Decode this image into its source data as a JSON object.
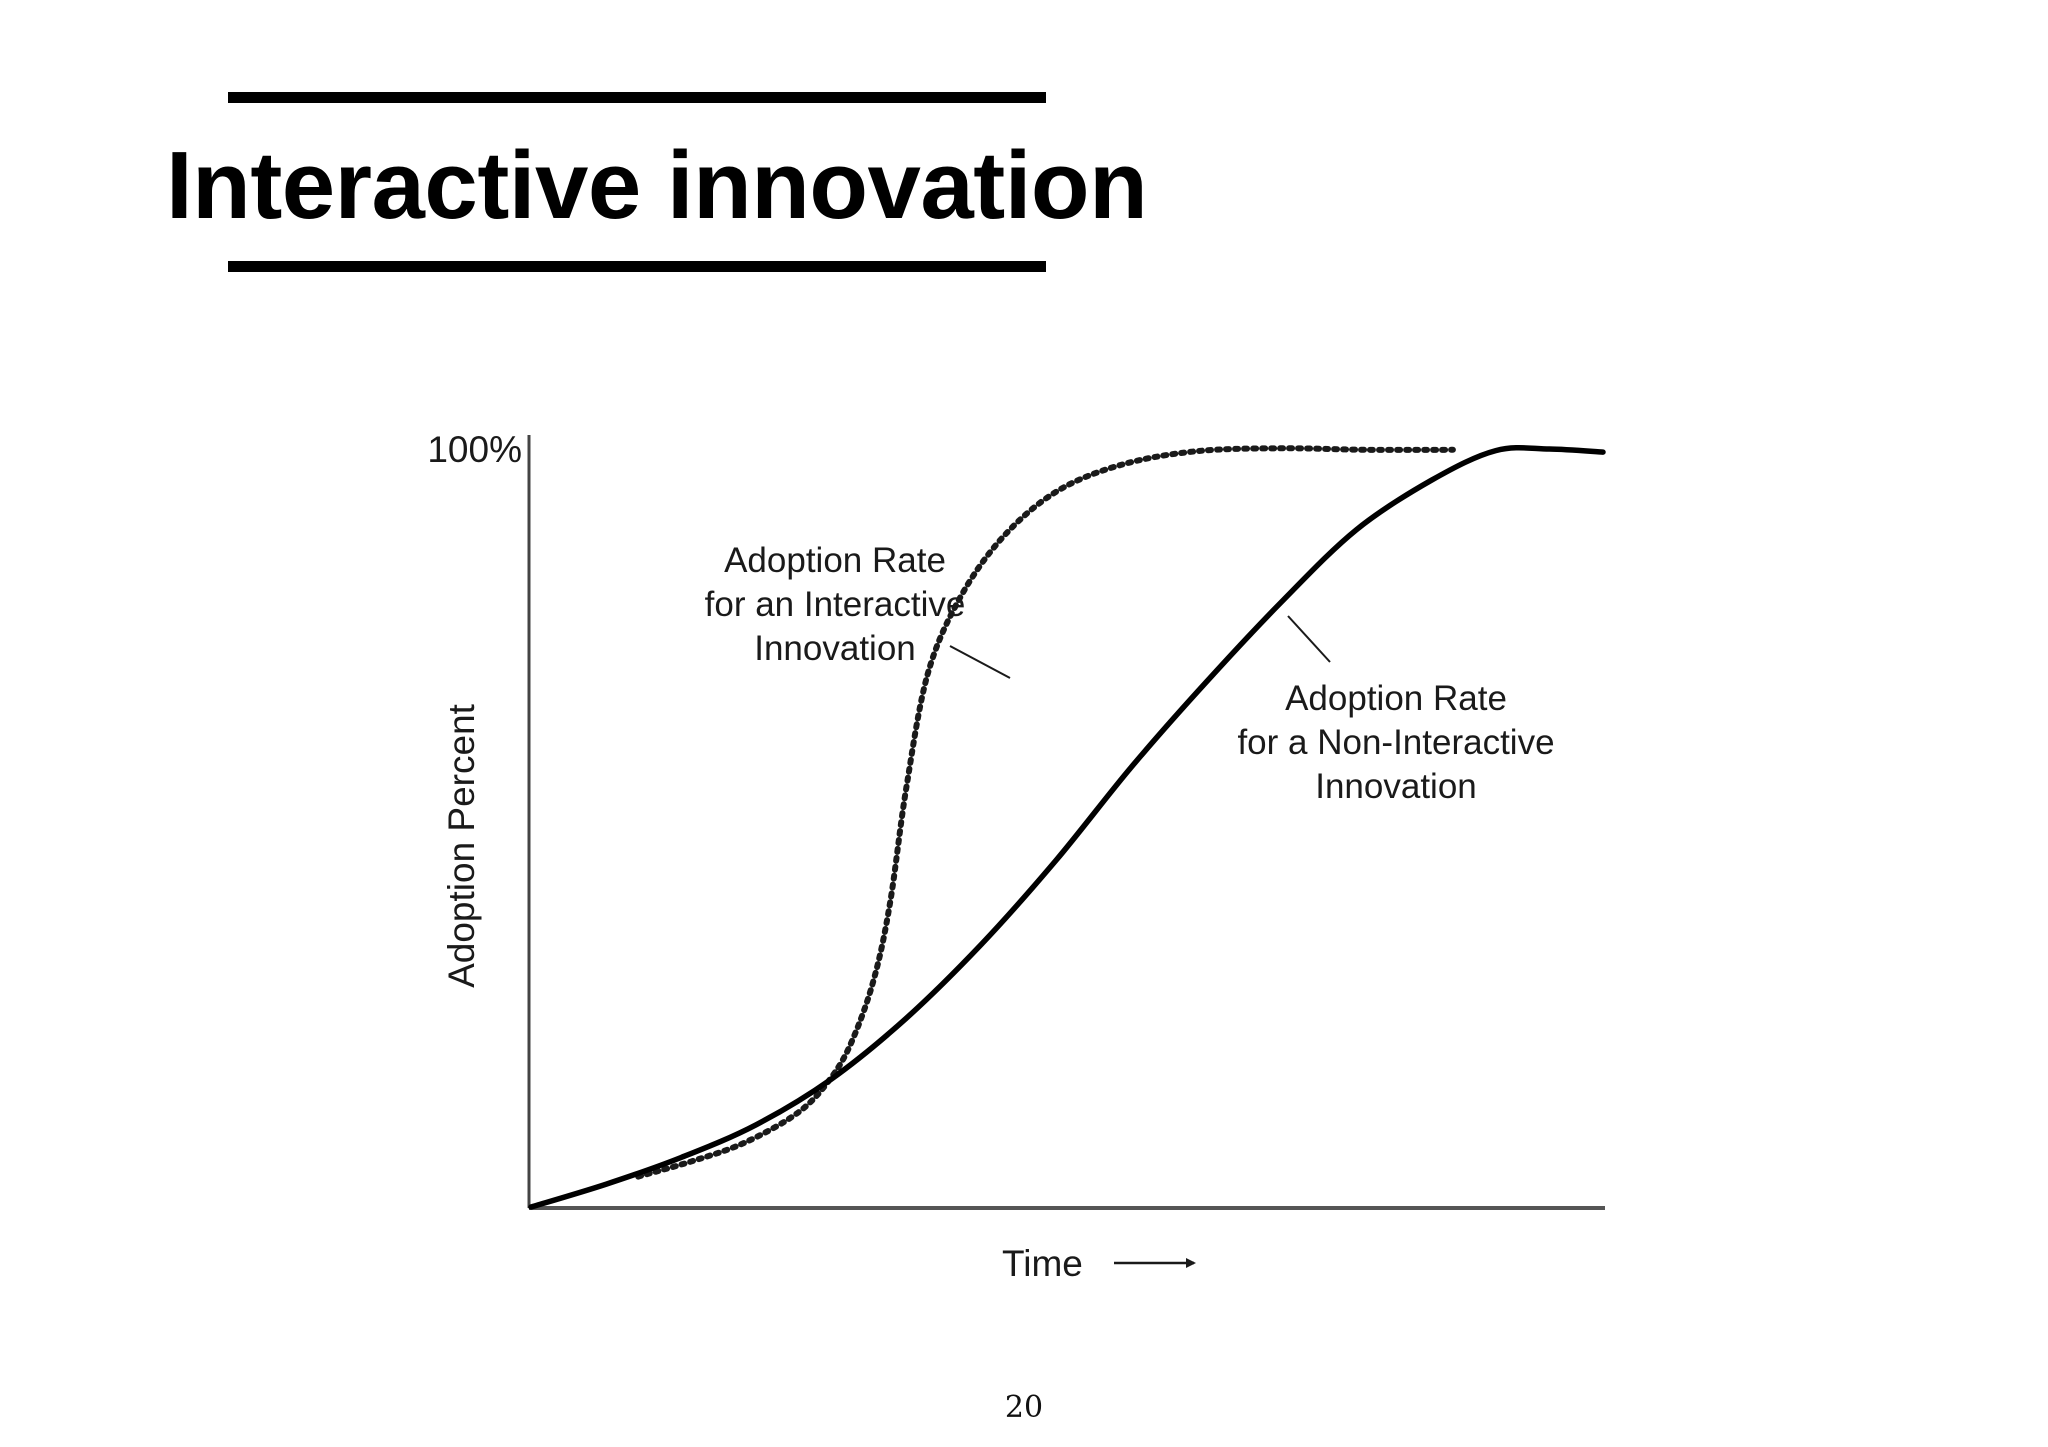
{
  "slide": {
    "title": "Interactive innovation",
    "page_number": "20"
  },
  "chart_data": {
    "type": "line",
    "title": "",
    "xlabel": "Time",
    "ylabel": "Adoption Percent",
    "y_top_tick_label": "100%",
    "xlim": [
      0,
      100
    ],
    "ylim": [
      0,
      100
    ],
    "grid": false,
    "legend": "none",
    "series": [
      {
        "name": "Adoption Rate for an Interactive Innovation",
        "label_lines": [
          "Adoption Rate",
          "for an Interactive",
          "Innovation"
        ],
        "style": "dotted",
        "color": "#1a1a1a",
        "points": [
          [
            10,
            4
          ],
          [
            15,
            6
          ],
          [
            20,
            8.5
          ],
          [
            25,
            12.5
          ],
          [
            28,
            17
          ],
          [
            30,
            22
          ],
          [
            32,
            30
          ],
          [
            33.5,
            40
          ],
          [
            35,
            55
          ],
          [
            37,
            70
          ],
          [
            40,
            80
          ],
          [
            44,
            88
          ],
          [
            49,
            94
          ],
          [
            55,
            97.5
          ],
          [
            62,
            99.3
          ],
          [
            70,
            99.7
          ],
          [
            78,
            99.5
          ],
          [
            86,
            99.5
          ]
        ]
      },
      {
        "name": "Adoption Rate for a Non-Interactive Innovation",
        "label_lines": [
          "Adoption Rate",
          "for a Non-Interactive",
          "Innovation"
        ],
        "style": "solid",
        "color": "#000000",
        "points": [
          [
            0,
            0
          ],
          [
            7,
            3
          ],
          [
            14,
            6.5
          ],
          [
            21,
            10.8
          ],
          [
            28,
            16.8
          ],
          [
            35,
            24.8
          ],
          [
            42,
            34.5
          ],
          [
            49,
            45.6
          ],
          [
            56,
            57.8
          ],
          [
            63,
            69
          ],
          [
            70,
            79.5
          ],
          [
            77,
            89
          ],
          [
            84,
            95.5
          ],
          [
            90,
            99.4
          ],
          [
            95,
            99.6
          ],
          [
            100,
            99.2
          ]
        ]
      }
    ]
  }
}
